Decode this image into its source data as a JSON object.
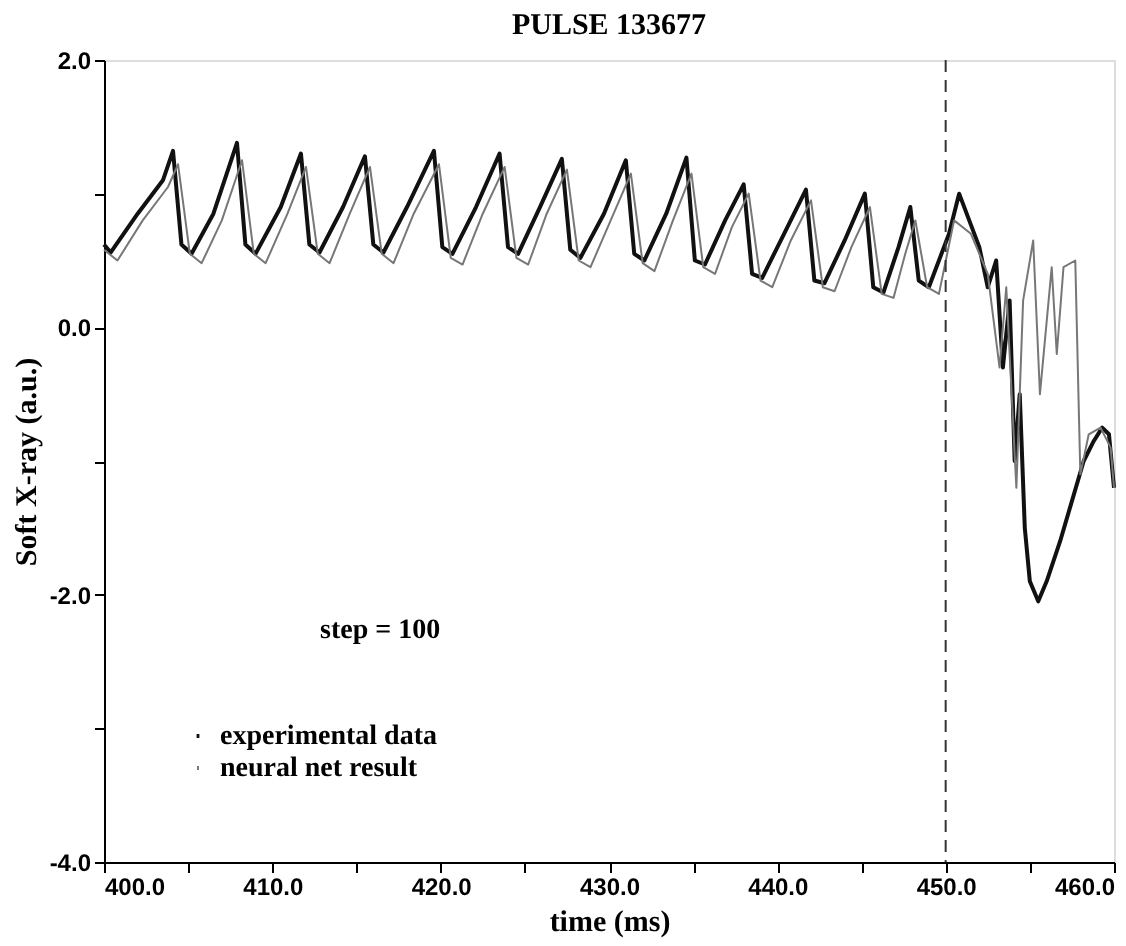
{
  "chart_data": {
    "type": "line",
    "title": "PULSE 133677",
    "xlabel": "time (ms)",
    "ylabel": "Soft X-ray (a.u.)",
    "xlim": [
      400,
      460
    ],
    "ylim": [
      -4,
      2
    ],
    "xticks": [
      {
        "value": 400,
        "label": "400.0"
      },
      {
        "value": 405,
        "label": null
      },
      {
        "value": 410,
        "label": "410.0"
      },
      {
        "value": 415,
        "label": null
      },
      {
        "value": 420,
        "label": "420.0"
      },
      {
        "value": 425,
        "label": null
      },
      {
        "value": 430,
        "label": "430.0"
      },
      {
        "value": 435,
        "label": null
      },
      {
        "value": 440,
        "label": "440.0"
      },
      {
        "value": 445,
        "label": null
      },
      {
        "value": 450,
        "label": "450.0"
      },
      {
        "value": 455,
        "label": null
      },
      {
        "value": 460,
        "label": "460.0"
      }
    ],
    "yticks": [
      {
        "value": -4,
        "label": "-4.0"
      },
      {
        "value": -3,
        "label": null
      },
      {
        "value": -2,
        "label": "-2.0"
      },
      {
        "value": -1,
        "label": null
      },
      {
        "value": 0,
        "label": "0.0"
      },
      {
        "value": 1,
        "label": null
      },
      {
        "value": 2,
        "label": "2.0"
      }
    ],
    "grid": false,
    "legend": "bottom left",
    "marker": "none",
    "line_style": "solid",
    "annotations": [
      "step = 100"
    ],
    "ref_lines": [
      {
        "axis": "x",
        "value": 450,
        "label": null,
        "line_style": "dashed",
        "color": "#333333"
      }
    ],
    "series": [
      {
        "name": "experimental data",
        "color": "#111111",
        "x": [
          400.0,
          400.4,
          402.0,
          403.5,
          404.1,
          404.6,
          405.2,
          406.5,
          407.9,
          408.4,
          409.0,
          410.5,
          411.7,
          412.2,
          412.8,
          414.2,
          415.5,
          416.0,
          416.6,
          418.0,
          419.6,
          420.1,
          420.7,
          422.1,
          423.5,
          424.0,
          424.6,
          425.9,
          427.2,
          427.7,
          428.3,
          429.7,
          431.0,
          431.5,
          432.1,
          433.4,
          434.6,
          435.1,
          435.7,
          436.9,
          438.0,
          438.5,
          439.1,
          440.4,
          441.7,
          442.2,
          442.8,
          444.0,
          445.2,
          445.7,
          446.3,
          447.2,
          447.9,
          448.4,
          449.0,
          450.2,
          450.8,
          451.4,
          452.0,
          452.5,
          453.0,
          453.4,
          453.8,
          454.1,
          454.4,
          454.7,
          455.0,
          455.5,
          456.0,
          456.8,
          457.5,
          458.2,
          458.8,
          459.3,
          459.7,
          460.0
        ],
        "values": [
          0.62,
          0.56,
          0.85,
          1.1,
          1.32,
          0.62,
          0.55,
          0.85,
          1.38,
          0.62,
          0.55,
          0.9,
          1.3,
          0.62,
          0.56,
          0.9,
          1.28,
          0.62,
          0.56,
          0.9,
          1.32,
          0.6,
          0.55,
          0.9,
          1.3,
          0.6,
          0.55,
          0.9,
          1.26,
          0.58,
          0.52,
          0.85,
          1.25,
          0.55,
          0.5,
          0.85,
          1.27,
          0.5,
          0.47,
          0.8,
          1.07,
          0.4,
          0.37,
          0.7,
          1.03,
          0.35,
          0.33,
          0.65,
          1.0,
          0.3,
          0.26,
          0.6,
          0.9,
          0.35,
          0.3,
          0.7,
          1.0,
          0.8,
          0.6,
          0.3,
          0.5,
          -0.3,
          0.2,
          -1.0,
          -0.5,
          -1.5,
          -1.9,
          -2.05,
          -1.9,
          -1.6,
          -1.3,
          -1.0,
          -0.85,
          -0.75,
          -0.8,
          -1.2
        ]
      },
      {
        "name": "neural net result",
        "color": "#777777",
        "x": [
          400.0,
          400.8,
          402.3,
          403.8,
          404.4,
          405.1,
          405.8,
          407.0,
          408.2,
          408.9,
          409.6,
          410.9,
          412.0,
          412.7,
          413.4,
          414.6,
          415.8,
          416.5,
          417.2,
          418.4,
          419.9,
          420.6,
          421.3,
          422.5,
          423.8,
          424.5,
          425.2,
          426.3,
          427.5,
          428.2,
          428.9,
          430.1,
          431.3,
          432.0,
          432.7,
          433.8,
          434.9,
          435.6,
          436.3,
          437.3,
          438.3,
          439.0,
          439.7,
          440.8,
          442.0,
          442.7,
          443.4,
          444.4,
          445.5,
          446.2,
          446.9,
          447.6,
          448.2,
          448.9,
          449.6,
          450.5,
          451.5,
          452.5,
          453.2,
          453.6,
          454.2,
          454.6,
          455.2,
          455.6,
          456.3,
          456.6,
          457.0,
          457.7,
          458.0,
          458.5,
          459.2,
          459.8,
          460.0
        ],
        "values": [
          0.58,
          0.5,
          0.8,
          1.05,
          1.22,
          0.55,
          0.48,
          0.8,
          1.25,
          0.55,
          0.48,
          0.85,
          1.2,
          0.55,
          0.48,
          0.85,
          1.2,
          0.55,
          0.48,
          0.85,
          1.22,
          0.52,
          0.47,
          0.85,
          1.2,
          0.52,
          0.47,
          0.85,
          1.18,
          0.5,
          0.45,
          0.8,
          1.15,
          0.48,
          0.42,
          0.8,
          1.15,
          0.45,
          0.4,
          0.75,
          1.0,
          0.35,
          0.3,
          0.65,
          0.95,
          0.3,
          0.27,
          0.6,
          0.9,
          0.25,
          0.22,
          0.55,
          0.8,
          0.3,
          0.25,
          0.8,
          0.7,
          0.4,
          -0.3,
          0.3,
          -1.2,
          0.2,
          0.65,
          -0.5,
          0.45,
          -0.2,
          0.45,
          0.5,
          -1.1,
          -0.8,
          -0.75,
          -0.9,
          -1.2
        ]
      }
    ]
  }
}
